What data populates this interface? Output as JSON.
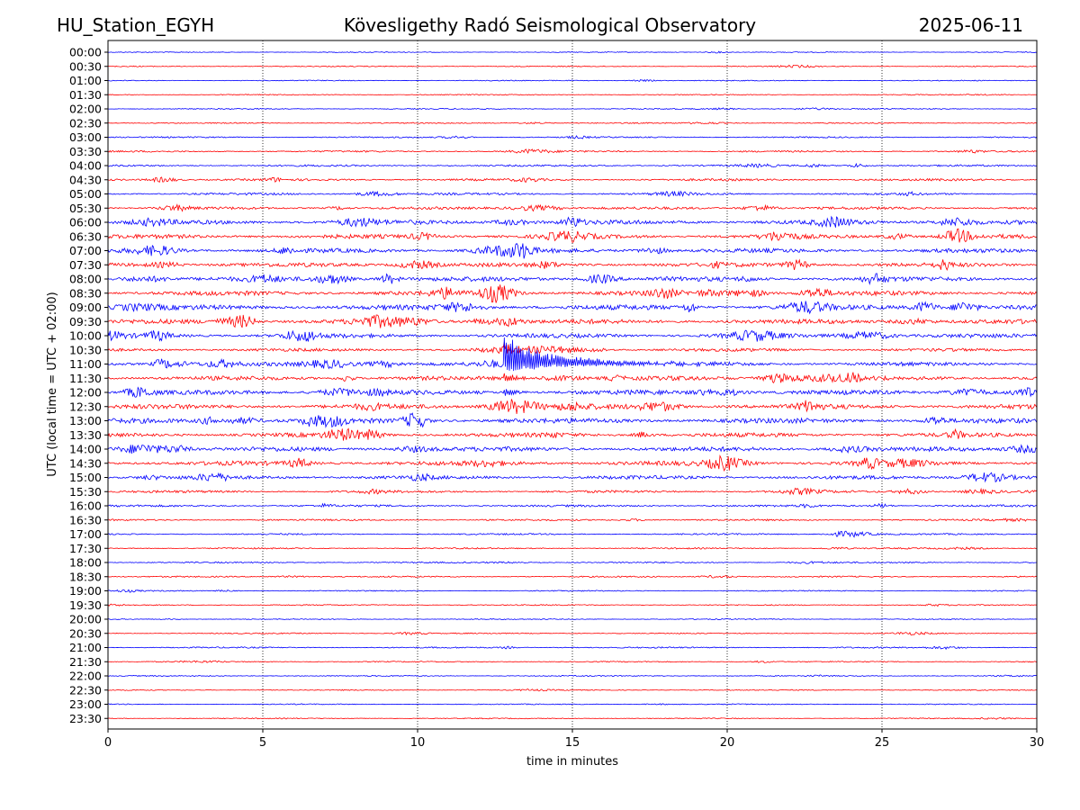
{
  "header": {
    "station": "HU_Station_EGYH",
    "observatory": "Kövesligethy Radó Seismological Observatory",
    "date": "2025-06-11"
  },
  "chart_data": {
    "type": "line",
    "title": "Kövesligethy Radó Seismological Observatory",
    "xlabel": "time in minutes",
    "ylabel": "UTC (local time = UTC + 02:00)",
    "xlim": [
      0,
      30
    ],
    "xticks": [
      0,
      5,
      10,
      15,
      20,
      25,
      30
    ],
    "grid": "vertical dotted",
    "colors": {
      "even_rows": "#0000ff",
      "odd_rows": "#ff0000"
    },
    "rows": [
      {
        "label": "00:00",
        "amp": 0.6
      },
      {
        "label": "00:30",
        "amp": 0.7
      },
      {
        "label": "01:00",
        "amp": 0.7
      },
      {
        "label": "01:30",
        "amp": 0.7
      },
      {
        "label": "02:00",
        "amp": 0.8
      },
      {
        "label": "02:30",
        "amp": 0.8
      },
      {
        "label": "03:00",
        "amp": 1.0
      },
      {
        "label": "03:30",
        "amp": 1.2
      },
      {
        "label": "04:00",
        "amp": 1.3
      },
      {
        "label": "04:30",
        "amp": 1.6
      },
      {
        "label": "05:00",
        "amp": 1.6
      },
      {
        "label": "05:30",
        "amp": 1.9
      },
      {
        "label": "06:00",
        "amp": 3.2
      },
      {
        "label": "06:30",
        "amp": 3.0
      },
      {
        "label": "07:00",
        "amp": 3.0
      },
      {
        "label": "07:30",
        "amp": 3.0
      },
      {
        "label": "08:00",
        "amp": 3.3
      },
      {
        "label": "08:30",
        "amp": 3.3
      },
      {
        "label": "09:00",
        "amp": 3.5
      },
      {
        "label": "09:30",
        "amp": 3.3
      },
      {
        "label": "10:00",
        "amp": 3.0
      },
      {
        "label": "10:30",
        "amp": 2.2
      },
      {
        "label": "11:00",
        "amp": 2.8
      },
      {
        "label": "11:30",
        "amp": 3.0
      },
      {
        "label": "12:00",
        "amp": 3.2
      },
      {
        "label": "12:30",
        "amp": 3.4
      },
      {
        "label": "13:00",
        "amp": 3.5
      },
      {
        "label": "13:30",
        "amp": 3.0
      },
      {
        "label": "14:00",
        "amp": 3.2
      },
      {
        "label": "14:30",
        "amp": 3.2
      },
      {
        "label": "15:00",
        "amp": 2.6
      },
      {
        "label": "15:30",
        "amp": 1.8
      },
      {
        "label": "16:00",
        "amp": 1.5
      },
      {
        "label": "16:30",
        "amp": 1.2
      },
      {
        "label": "17:00",
        "amp": 1.1
      },
      {
        "label": "17:30",
        "amp": 1.0
      },
      {
        "label": "18:00",
        "amp": 1.0
      },
      {
        "label": "18:30",
        "amp": 1.0
      },
      {
        "label": "19:00",
        "amp": 0.8
      },
      {
        "label": "19:30",
        "amp": 0.8
      },
      {
        "label": "20:00",
        "amp": 0.7
      },
      {
        "label": "20:30",
        "amp": 0.8
      },
      {
        "label": "21:00",
        "amp": 1.0
      },
      {
        "label": "21:30",
        "amp": 0.8
      },
      {
        "label": "22:00",
        "amp": 0.8
      },
      {
        "label": "22:30",
        "amp": 0.7
      },
      {
        "label": "23:00",
        "amp": 0.7
      },
      {
        "label": "23:30",
        "amp": 0.7
      }
    ],
    "events": [
      {
        "row": "11:00",
        "x": 12.8,
        "amp_up": 30,
        "amp_down": 10,
        "decay": 1.8
      },
      {
        "row": "10:30",
        "x": 12.8,
        "amp_up": 6,
        "amp_down": 6,
        "decay": 0.4
      },
      {
        "row": "11:30",
        "x": 12.8,
        "amp_up": 6,
        "amp_down": 6,
        "decay": 0.4
      },
      {
        "row": "12:00",
        "x": 12.8,
        "amp_up": 6,
        "amp_down": 6,
        "decay": 0.3
      }
    ]
  }
}
